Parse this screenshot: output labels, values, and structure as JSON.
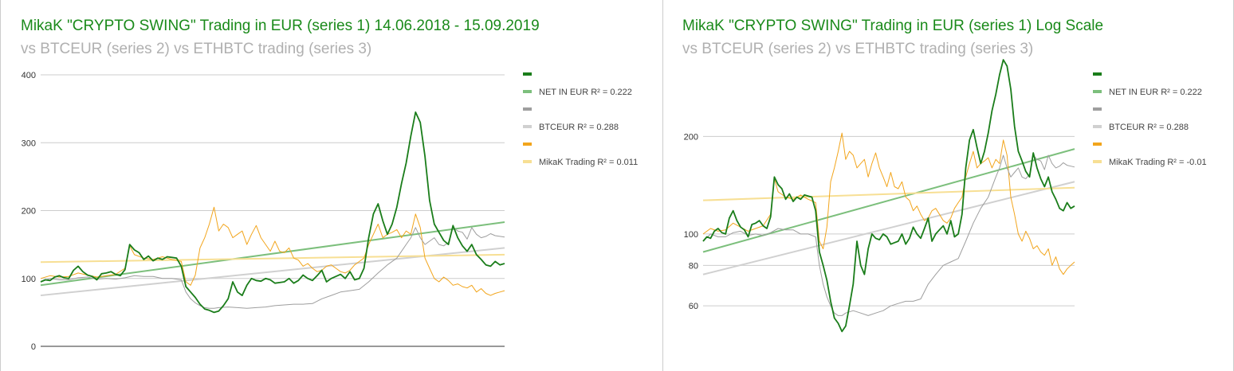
{
  "colors": {
    "net": "#1a7d1a",
    "net_trend": "#7cbf7c",
    "btc": "#9e9e9e",
    "btc_trend": "#d0d0d0",
    "mikak": "#f2a51c",
    "mikak_trend": "#f7df94",
    "title": "#1a8a1a",
    "subtitle": "#b0b0b0",
    "grid": "#cccccc",
    "axis_label": "#333333",
    "legend_text": "#444444"
  },
  "chart_data": [
    {
      "type": "line",
      "title": "MikaK \"CRYPTO SWING\" Trading in EUR (series 1) 14.06.2018 - 15.09.2019",
      "subtitle": "vs BTCEUR (series 2) vs ETHBTC trading (series 3)",
      "ylim": [
        0,
        400
      ],
      "yscale": "linear",
      "ticks": [
        {
          "value": 0,
          "label": "0"
        },
        {
          "value": 100,
          "label": "100"
        },
        {
          "value": 200,
          "label": "200"
        },
        {
          "value": 300,
          "label": "300"
        },
        {
          "value": 400,
          "label": "400"
        }
      ],
      "legend_position": "right",
      "legend": [
        {
          "label": "",
          "color_key": "net"
        },
        {
          "label": "NET IN EUR R² = 0.222",
          "color_key": "net_trend"
        },
        {
          "label": "",
          "color_key": "btc"
        },
        {
          "label": "BTCEUR R² = 0.288",
          "color_key": "btc_trend"
        },
        {
          "label": "",
          "color_key": "mikak"
        },
        {
          "label": "MikaK Trading R² = 0.011",
          "color_key": "mikak_trend"
        }
      ],
      "trendlines": {
        "net": [
          90,
          183
        ],
        "btc": [
          75,
          145
        ],
        "mikak": [
          124,
          135
        ]
      }
    },
    {
      "type": "line",
      "title": "MikaK \"CRYPTO SWING\" Trading in EUR (series 1) Log Scale",
      "subtitle": "vs BTCEUR (series 2) vs ETHBTC trading (series 3)",
      "ylim": [
        45,
        310
      ],
      "yscale": "log",
      "ticks": [
        {
          "value": 60,
          "label": "60"
        },
        {
          "value": 80,
          "label": "80"
        },
        {
          "value": 100,
          "label": "100"
        },
        {
          "value": 200,
          "label": "200"
        }
      ],
      "legend_position": "right",
      "legend": [
        {
          "label": "",
          "color_key": "net"
        },
        {
          "label": "NET IN EUR R² = 0.222",
          "color_key": "net_trend"
        },
        {
          "label": "",
          "color_key": "btc"
        },
        {
          "label": "BTCEUR R² = 0.288",
          "color_key": "btc_trend"
        },
        {
          "label": "",
          "color_key": "mikak"
        },
        {
          "label": "MikaK Trading R² = -0.01",
          "color_key": "mikak_trend"
        }
      ],
      "trendlines": {
        "net": [
          88,
          183
        ],
        "btc": [
          75,
          145
        ],
        "mikak": [
          127,
          139
        ]
      }
    }
  ],
  "series_data": {
    "net": [
      [
        0,
        95
      ],
      [
        3,
        98
      ],
      [
        6,
        97
      ],
      [
        9,
        102
      ],
      [
        12,
        104
      ],
      [
        15,
        101
      ],
      [
        18,
        100
      ],
      [
        21,
        112
      ],
      [
        24,
        118
      ],
      [
        27,
        110
      ],
      [
        30,
        105
      ],
      [
        33,
        103
      ],
      [
        36,
        98
      ],
      [
        39,
        107
      ],
      [
        42,
        108
      ],
      [
        45,
        110
      ],
      [
        48,
        106
      ],
      [
        51,
        104
      ],
      [
        54,
        113
      ],
      [
        57,
        150
      ],
      [
        60,
        142
      ],
      [
        63,
        138
      ],
      [
        66,
        128
      ],
      [
        69,
        133
      ],
      [
        72,
        126
      ],
      [
        75,
        130
      ],
      [
        78,
        128
      ],
      [
        81,
        132
      ],
      [
        84,
        131
      ],
      [
        87,
        130
      ],
      [
        90,
        118
      ],
      [
        93,
        88
      ],
      [
        96,
        80
      ],
      [
        99,
        72
      ],
      [
        102,
        62
      ],
      [
        105,
        55
      ],
      [
        108,
        53
      ],
      [
        111,
        50
      ],
      [
        114,
        52
      ],
      [
        117,
        60
      ],
      [
        120,
        70
      ],
      [
        123,
        95
      ],
      [
        126,
        80
      ],
      [
        129,
        75
      ],
      [
        132,
        90
      ],
      [
        135,
        100
      ],
      [
        138,
        97
      ],
      [
        141,
        96
      ],
      [
        144,
        100
      ],
      [
        147,
        98
      ],
      [
        150,
        93
      ],
      [
        153,
        94
      ],
      [
        156,
        95
      ],
      [
        159,
        100
      ],
      [
        162,
        93
      ],
      [
        165,
        97
      ],
      [
        168,
        105
      ],
      [
        171,
        100
      ],
      [
        174,
        97
      ],
      [
        177,
        104
      ],
      [
        180,
        112
      ],
      [
        183,
        95
      ],
      [
        186,
        100
      ],
      [
        189,
        103
      ],
      [
        192,
        106
      ],
      [
        195,
        100
      ],
      [
        198,
        110
      ],
      [
        201,
        98
      ],
      [
        204,
        100
      ],
      [
        207,
        115
      ],
      [
        210,
        160
      ],
      [
        213,
        195
      ],
      [
        216,
        210
      ],
      [
        219,
        185
      ],
      [
        222,
        165
      ],
      [
        225,
        180
      ],
      [
        228,
        205
      ],
      [
        231,
        240
      ],
      [
        234,
        270
      ],
      [
        237,
        310
      ],
      [
        240,
        345
      ],
      [
        243,
        330
      ],
      [
        246,
        280
      ],
      [
        249,
        215
      ],
      [
        252,
        180
      ],
      [
        255,
        168
      ],
      [
        258,
        156
      ],
      [
        261,
        150
      ],
      [
        264,
        178
      ],
      [
        267,
        160
      ],
      [
        270,
        148
      ],
      [
        273,
        140
      ],
      [
        276,
        150
      ],
      [
        279,
        135
      ],
      [
        282,
        128
      ],
      [
        285,
        120
      ],
      [
        288,
        118
      ],
      [
        291,
        125
      ],
      [
        294,
        120
      ],
      [
        297,
        122
      ]
    ],
    "btc": [
      [
        0,
        95
      ],
      [
        6,
        100
      ],
      [
        12,
        98
      ],
      [
        18,
        98
      ],
      [
        24,
        101
      ],
      [
        30,
        102
      ],
      [
        36,
        99
      ],
      [
        42,
        100
      ],
      [
        48,
        99
      ],
      [
        54,
        101
      ],
      [
        60,
        104
      ],
      [
        66,
        103
      ],
      [
        72,
        103
      ],
      [
        78,
        100
      ],
      [
        84,
        100
      ],
      [
        90,
        98
      ],
      [
        93,
        80
      ],
      [
        96,
        70
      ],
      [
        99,
        64
      ],
      [
        102,
        60
      ],
      [
        105,
        57
      ],
      [
        108,
        56
      ],
      [
        111,
        56
      ],
      [
        114,
        57
      ],
      [
        120,
        58
      ],
      [
        126,
        57
      ],
      [
        132,
        56
      ],
      [
        138,
        57
      ],
      [
        144,
        58
      ],
      [
        150,
        60
      ],
      [
        156,
        61
      ],
      [
        162,
        62
      ],
      [
        168,
        62
      ],
      [
        174,
        63
      ],
      [
        180,
        70
      ],
      [
        186,
        75
      ],
      [
        192,
        80
      ],
      [
        198,
        82
      ],
      [
        204,
        84
      ],
      [
        210,
        95
      ],
      [
        216,
        108
      ],
      [
        222,
        120
      ],
      [
        228,
        130
      ],
      [
        234,
        150
      ],
      [
        237,
        160
      ],
      [
        240,
        175
      ],
      [
        243,
        160
      ],
      [
        246,
        150
      ],
      [
        249,
        155
      ],
      [
        252,
        160
      ],
      [
        255,
        150
      ],
      [
        258,
        148
      ],
      [
        261,
        153
      ],
      [
        264,
        175
      ],
      [
        267,
        170
      ],
      [
        270,
        168
      ],
      [
        273,
        158
      ],
      [
        276,
        175
      ],
      [
        279,
        165
      ],
      [
        282,
        160
      ],
      [
        285,
        162
      ],
      [
        288,
        166
      ],
      [
        291,
        163
      ],
      [
        294,
        162
      ],
      [
        297,
        161
      ]
    ],
    "mikak": [
      [
        0,
        100
      ],
      [
        6,
        104
      ],
      [
        12,
        102
      ],
      [
        18,
        103
      ],
      [
        24,
        108
      ],
      [
        30,
        105
      ],
      [
        36,
        102
      ],
      [
        42,
        104
      ],
      [
        48,
        106
      ],
      [
        54,
        115
      ],
      [
        57,
        148
      ],
      [
        60,
        135
      ],
      [
        66,
        130
      ],
      [
        72,
        128
      ],
      [
        78,
        132
      ],
      [
        84,
        128
      ],
      [
        90,
        125
      ],
      [
        93,
        95
      ],
      [
        96,
        90
      ],
      [
        99,
        105
      ],
      [
        102,
        145
      ],
      [
        105,
        160
      ],
      [
        108,
        180
      ],
      [
        111,
        205
      ],
      [
        114,
        170
      ],
      [
        117,
        180
      ],
      [
        120,
        175
      ],
      [
        123,
        160
      ],
      [
        126,
        165
      ],
      [
        129,
        170
      ],
      [
        132,
        150
      ],
      [
        135,
        165
      ],
      [
        138,
        178
      ],
      [
        141,
        160
      ],
      [
        144,
        150
      ],
      [
        147,
        140
      ],
      [
        150,
        155
      ],
      [
        153,
        140
      ],
      [
        156,
        138
      ],
      [
        159,
        145
      ],
      [
        162,
        130
      ],
      [
        165,
        127
      ],
      [
        168,
        118
      ],
      [
        171,
        122
      ],
      [
        174,
        115
      ],
      [
        177,
        110
      ],
      [
        180,
        112
      ],
      [
        183,
        118
      ],
      [
        186,
        120
      ],
      [
        189,
        115
      ],
      [
        192,
        110
      ],
      [
        195,
        108
      ],
      [
        198,
        112
      ],
      [
        201,
        120
      ],
      [
        204,
        125
      ],
      [
        207,
        130
      ],
      [
        210,
        150
      ],
      [
        213,
        165
      ],
      [
        216,
        180
      ],
      [
        219,
        160
      ],
      [
        222,
        165
      ],
      [
        225,
        168
      ],
      [
        228,
        172
      ],
      [
        231,
        160
      ],
      [
        234,
        170
      ],
      [
        237,
        165
      ],
      [
        240,
        195
      ],
      [
        243,
        175
      ],
      [
        246,
        130
      ],
      [
        249,
        115
      ],
      [
        252,
        100
      ],
      [
        255,
        95
      ],
      [
        258,
        102
      ],
      [
        261,
        97
      ],
      [
        264,
        90
      ],
      [
        267,
        92
      ],
      [
        270,
        88
      ],
      [
        273,
        86
      ],
      [
        276,
        90
      ],
      [
        279,
        80
      ],
      [
        282,
        85
      ],
      [
        285,
        78
      ],
      [
        288,
        75
      ],
      [
        291,
        78
      ],
      [
        294,
        80
      ],
      [
        297,
        82
      ]
    ]
  }
}
